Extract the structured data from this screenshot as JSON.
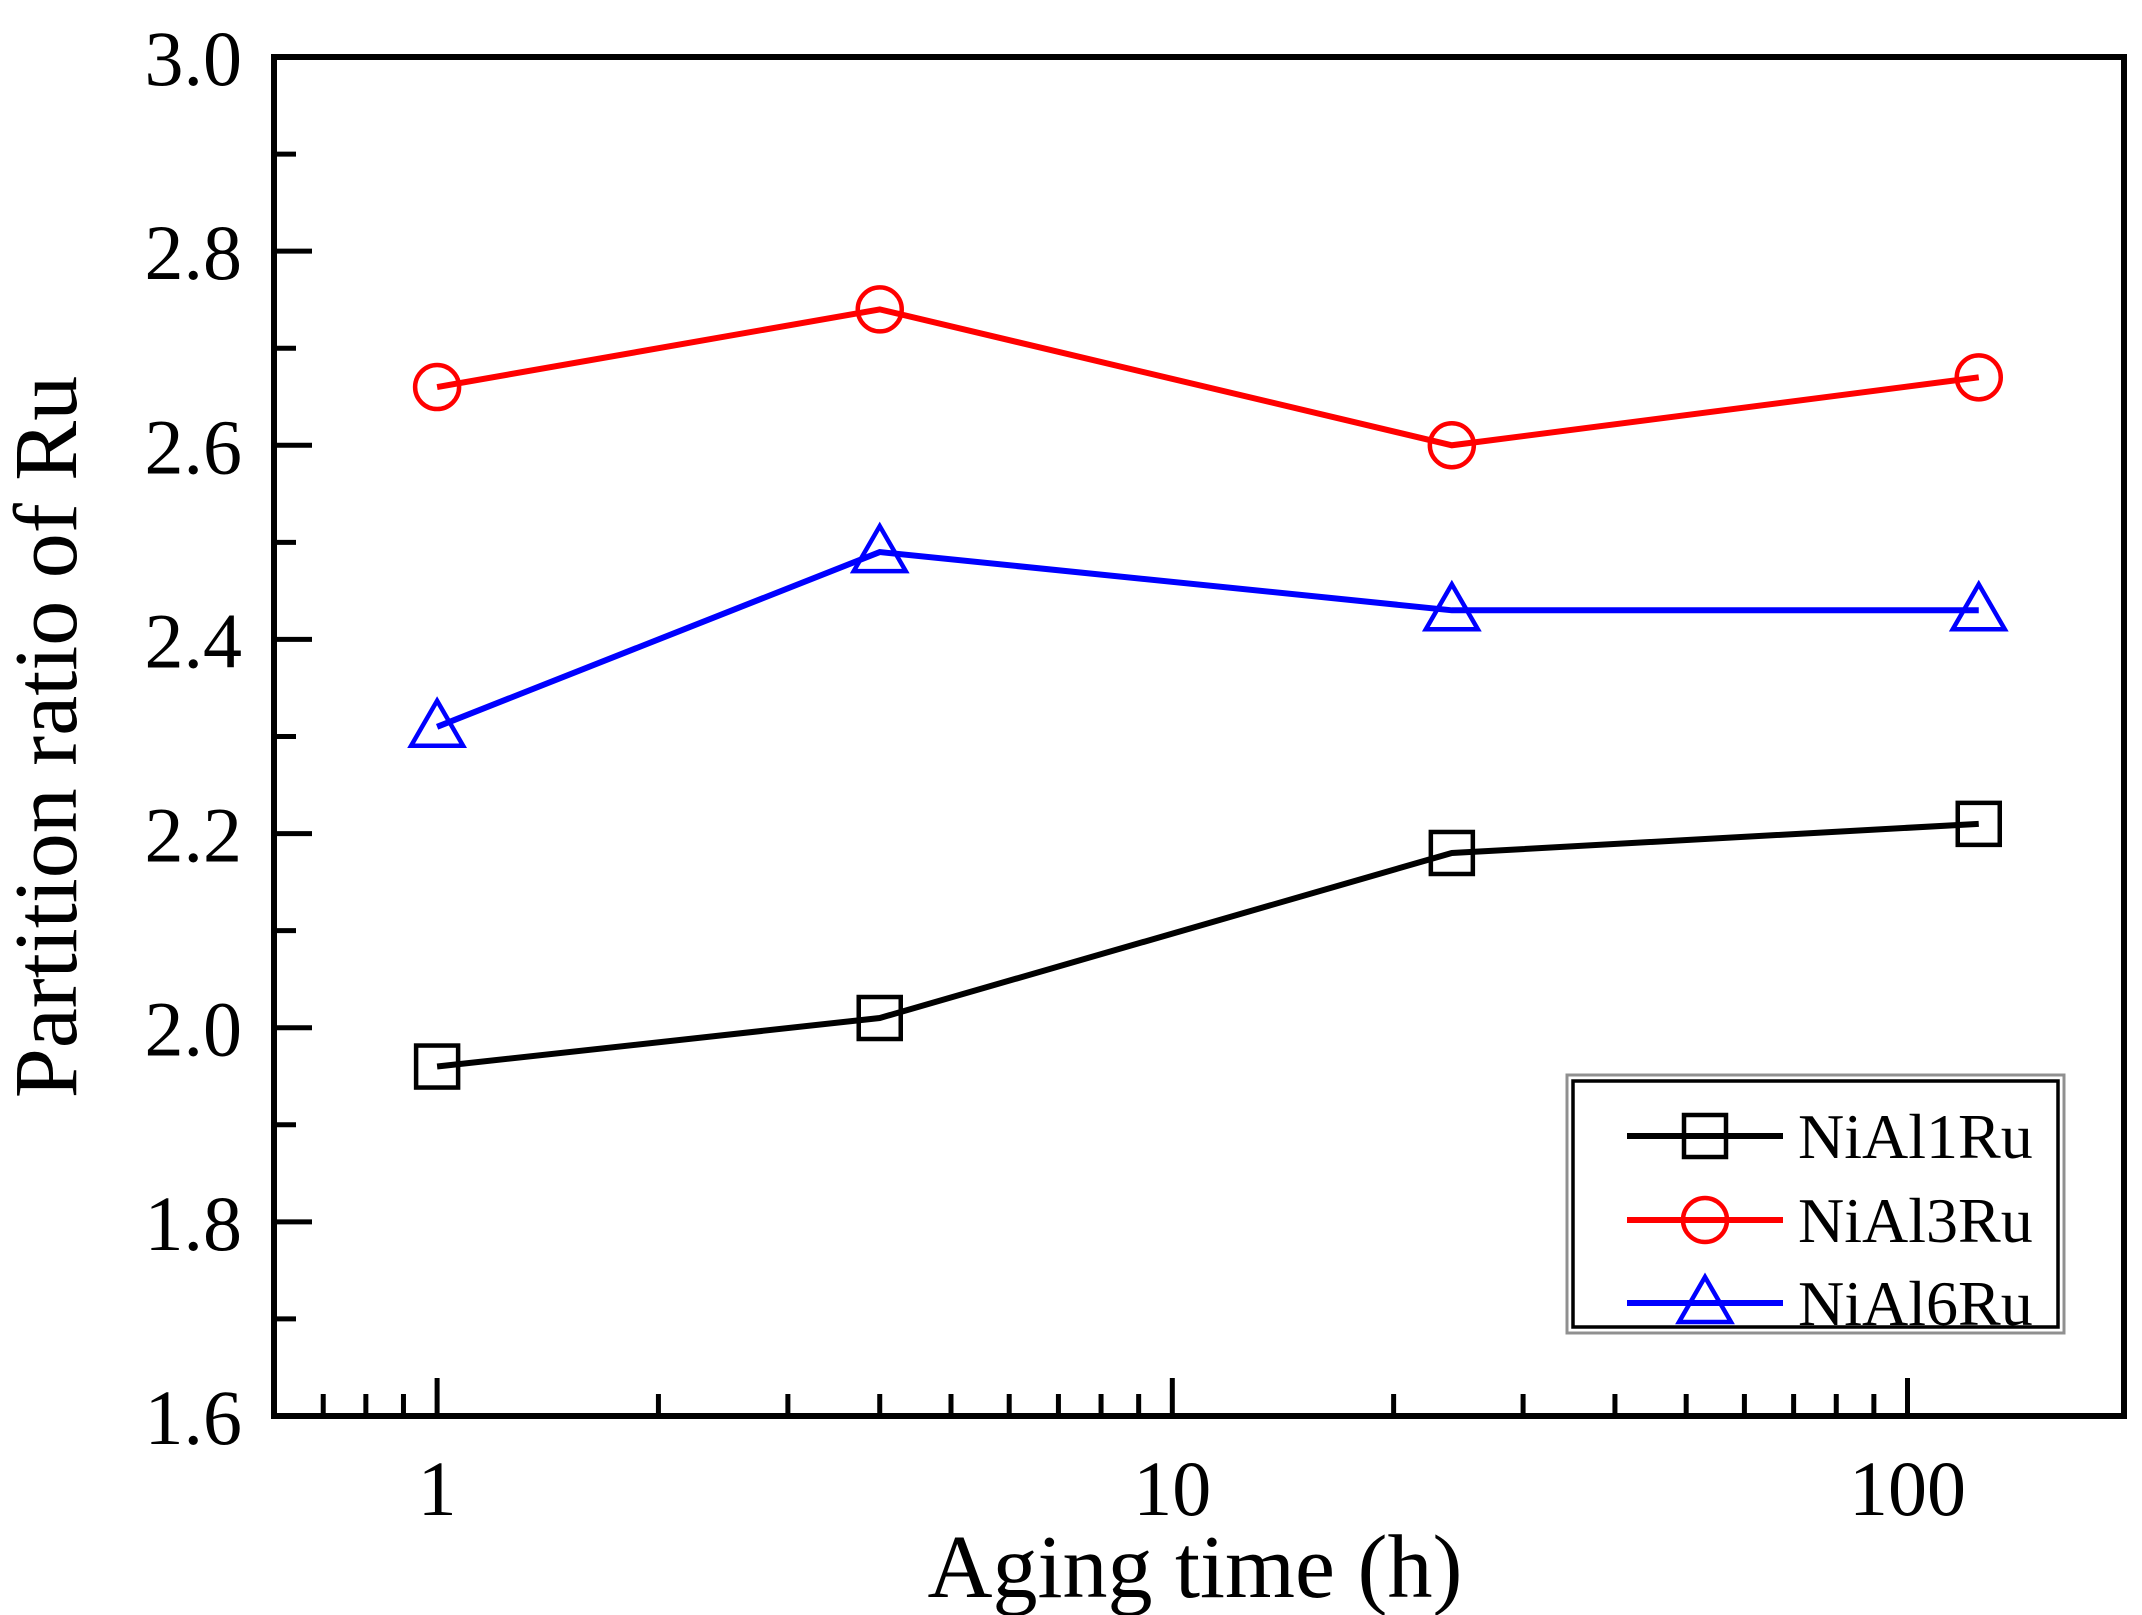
{
  "figure": {
    "background": "#ffffff",
    "axis_color": "#000000"
  },
  "chart_data": {
    "type": "line",
    "title": "",
    "xlabel": "Aging time (h)",
    "ylabel": "Partition ratio of Ru",
    "x_scale": "log",
    "grid": "off",
    "xlim": [
      0.6,
      197
    ],
    "ylim": [
      1.6,
      3.0
    ],
    "x_major_ticks": [
      1,
      10,
      100
    ],
    "x_major_tick_labels": [
      "1",
      "10",
      "100"
    ],
    "y_major_ticks": [
      1.6,
      1.8,
      2.0,
      2.2,
      2.4,
      2.6,
      2.8,
      3.0
    ],
    "y_major_tick_labels": [
      "1.6",
      "1.8",
      "2.0",
      "2.2",
      "2.4",
      "2.6",
      "2.8",
      "3.0"
    ],
    "y_minor_ticks": [
      1.7,
      1.9,
      2.1,
      2.3,
      2.5,
      2.7,
      2.9
    ],
    "legend_position": "bottom-right",
    "x": [
      1,
      4,
      24,
      125
    ],
    "series": [
      {
        "name": "NiAl1Ru",
        "color": "#000000",
        "marker": "square",
        "values": [
          1.96,
          2.01,
          2.18,
          2.21
        ]
      },
      {
        "name": "NiAl3Ru",
        "color": "#ff0000",
        "marker": "circle",
        "values": [
          2.66,
          2.74,
          2.6,
          2.67
        ]
      },
      {
        "name": "NiAl6Ru",
        "color": "#0000ff",
        "marker": "triangle",
        "values": [
          2.31,
          2.49,
          2.43,
          2.43
        ]
      }
    ]
  }
}
